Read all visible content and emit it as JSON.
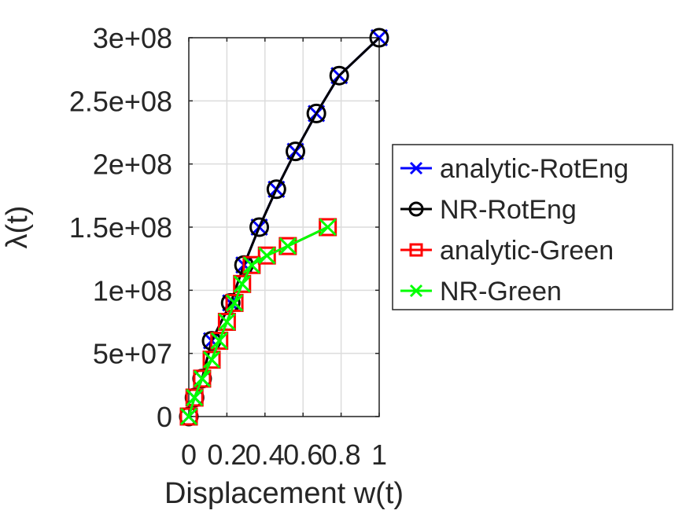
{
  "chart_data": {
    "type": "line",
    "title": "",
    "xlabel": "Displacement w(t)",
    "ylabel": "λ(t)",
    "xlim": [
      0,
      1
    ],
    "ylim": [
      0,
      300000000
    ],
    "xticks": [
      0,
      0.2,
      0.4,
      0.6,
      0.8,
      1
    ],
    "xtick_labels": [
      "0",
      "0.2",
      "0.4",
      "0.6",
      "0.8",
      "1"
    ],
    "yticks": [
      0,
      50000000,
      100000000,
      150000000,
      200000000,
      250000000,
      300000000
    ],
    "ytick_labels": [
      "0",
      "5e+07",
      "1e+08",
      "1.5e+08",
      "2e+08",
      "2.5e+08",
      "3e+08"
    ],
    "grid": true,
    "legend_position": "right",
    "series": [
      {
        "name": "analytic-RotEng",
        "color": "#0000ff",
        "marker": "x",
        "line": true,
        "x": [
          0,
          0.03,
          0.07,
          0.12,
          0.22,
          0.29,
          0.37,
          0.46,
          0.56,
          0.67,
          0.79,
          1.0
        ],
        "y": [
          0,
          15000000,
          30000000,
          60000000,
          90000000,
          120000000,
          150000000,
          180000000,
          210000000,
          240000000,
          270000000,
          300000000
        ]
      },
      {
        "name": "NR-RotEng",
        "color": "#000000",
        "marker": "circle",
        "line": true,
        "x": [
          0,
          0.03,
          0.07,
          0.12,
          0.22,
          0.29,
          0.37,
          0.46,
          0.56,
          0.67,
          0.79,
          1.0
        ],
        "y": [
          0,
          15000000,
          30000000,
          60000000,
          90000000,
          120000000,
          150000000,
          180000000,
          210000000,
          240000000,
          270000000,
          300000000
        ]
      },
      {
        "name": "analytic-Green",
        "color": "#ff0000",
        "marker": "square",
        "line": true,
        "x": [
          0,
          0.03,
          0.07,
          0.12,
          0.16,
          0.2,
          0.24,
          0.28,
          0.33,
          0.41,
          0.52,
          0.73
        ],
        "y": [
          0,
          15000000,
          30000000,
          45000000,
          60000000,
          75000000,
          90000000,
          105000000,
          120000000,
          127500000,
          135000000,
          150000000
        ]
      },
      {
        "name": "NR-Green",
        "color": "#00ff00",
        "marker": "x",
        "line": true,
        "x": [
          0,
          0.03,
          0.07,
          0.12,
          0.16,
          0.2,
          0.24,
          0.28,
          0.33,
          0.41,
          0.52,
          0.73
        ],
        "y": [
          0,
          15000000,
          30000000,
          45000000,
          60000000,
          75000000,
          90000000,
          105000000,
          120000000,
          127500000,
          135000000,
          150000000
        ]
      }
    ]
  }
}
